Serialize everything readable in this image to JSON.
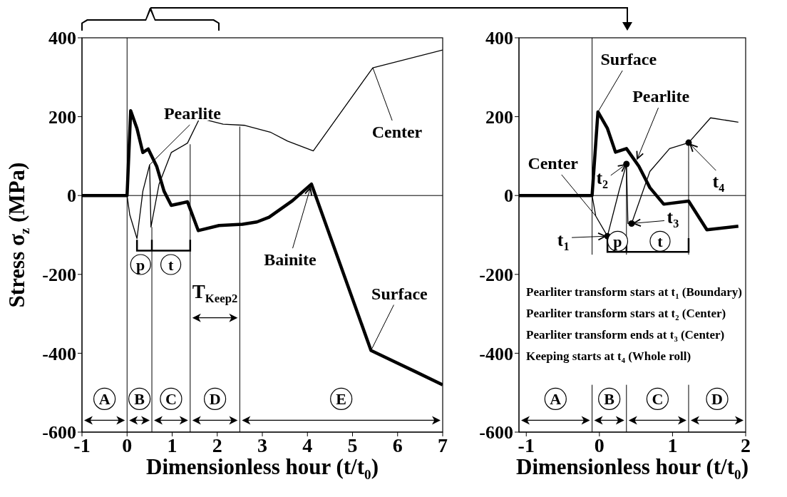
{
  "chart_data": [
    {
      "type": "line",
      "xlabel": "Dimensionless hour (t/t$_{0}$)",
      "ylabel": "Stress σ$_{z}$ (MPa)",
      "xlim": [
        -1,
        7
      ],
      "ylim": [
        -600,
        400
      ],
      "xticks": [
        -1,
        0,
        1,
        2,
        3,
        4,
        5,
        6,
        7
      ],
      "yticks": [
        -600,
        -400,
        -200,
        0,
        200,
        400
      ],
      "series": [
        {
          "name": "Surface",
          "color": "#000000",
          "x": [
            -1,
            0,
            0.08,
            0.22,
            0.35,
            0.47,
            0.66,
            0.82,
            0.98,
            1.34,
            1.58,
            2.04,
            2.56,
            2.88,
            3.15,
            3.67,
            4.09,
            5.41,
            6.4,
            7
          ],
          "values": [
            0,
            0,
            215,
            170,
            109,
            118,
            73,
            11,
            -25,
            -16,
            -89,
            -76,
            -73,
            -67,
            -55,
            -13,
            29,
            -393,
            -447,
            -480
          ]
        },
        {
          "name": "Center",
          "color": "#000000",
          "x": [
            -1,
            0,
            0.06,
            0.22,
            0.35,
            0.5,
            0.53,
            0.71,
            0.98,
            1.34,
            1.61,
            2.13,
            2.61,
            3.19,
            3.56,
            4.13,
            5.45,
            7
          ],
          "values": [
            0,
            0,
            -49,
            -109,
            11,
            78,
            -80,
            29,
            109,
            133,
            196,
            181,
            178,
            160,
            138,
            113,
            324,
            369
          ]
        }
      ],
      "ref_lines": [
        {
          "axis": "y",
          "value": 0
        },
        {
          "axis": "x",
          "value": 0
        },
        {
          "axis": "x",
          "value": 0.55
        },
        {
          "axis": "x",
          "value": 1.4
        },
        {
          "axis": "x",
          "value": 2.5
        }
      ],
      "annotations": [
        {
          "text": "Pearlite",
          "x": 0.5,
          "y": 78
        },
        {
          "text": "Bainite",
          "x": 4.09,
          "y": 29
        },
        {
          "text": "p",
          "x": 0.3,
          "y": -175
        },
        {
          "text": "t",
          "x": 0.97,
          "y": -175
        },
        "T$_{Keep2}$",
        "A",
        "B",
        "C",
        "D",
        "E"
      ]
    },
    {
      "type": "line",
      "xlabel": "Dimensionless hour (t/t$_{0}$)",
      "xlim": [
        -1.1,
        2
      ],
      "ylim": [
        -600,
        400
      ],
      "xticks": [
        -1,
        0,
        1,
        2
      ],
      "yticks": [
        -600,
        -400,
        -200,
        0,
        200,
        400
      ],
      "series": [
        {
          "name": "Surface",
          "color": "#000000",
          "x": [
            -1.1,
            -0.1,
            -0.02,
            0.11,
            0.22,
            0.37,
            0.54,
            0.69,
            0.88,
            1.22,
            1.47,
            1.9
          ],
          "values": [
            0,
            0,
            212,
            170,
            110,
            119,
            74,
            20,
            -22,
            -14,
            -87,
            -78
          ]
        },
        {
          "name": "Center",
          "color": "#000000",
          "x": [
            -1.1,
            -0.1,
            -0.05,
            0.11,
            0.27,
            0.37,
            0.39,
            0.44,
            0.69,
            0.96,
            1.22,
            1.52,
            1.9
          ],
          "values": [
            0,
            0,
            -52,
            -103,
            13,
            80,
            -71,
            -71,
            61,
            119,
            134,
            197,
            186
          ]
        },
        {
          "type": "scatter",
          "marker": "circle",
          "color": "#000000",
          "x": [
            0.11,
            0.37,
            0.44,
            1.22
          ],
          "values": [
            -103,
            80,
            -71,
            134
          ]
        }
      ],
      "ref_lines": [
        {
          "axis": "y",
          "value": 0
        },
        {
          "axis": "x",
          "value": -0.1
        },
        {
          "axis": "x",
          "value": 0.37
        },
        {
          "axis": "x",
          "value": 1.22
        }
      ],
      "annotations": [
        {
          "text": "Pearlite",
          "x": 0.5,
          "y": 85
        },
        {
          "text": "t$_{1}$",
          "x": 0.11,
          "y": -103
        },
        {
          "text": "t$_{2}$",
          "x": 0.37,
          "y": 80
        },
        {
          "text": "t$_{3}$",
          "x": 0.44,
          "y": -71
        },
        {
          "text": "t$_{4}$",
          "x": 1.22,
          "y": 134
        },
        {
          "text": "p",
          "x": 0.25,
          "y": -116
        },
        {
          "text": "t",
          "x": 0.83,
          "y": -116
        },
        "Pearliter transform stars at t$_{1}$ (Boundary)",
        "Pearliter transform stars at t$_{2}$ (Center)",
        "Pearliter transform ends at t$_{3}$ (Center)",
        "Keeping starts at t$_{4}$ (Whole roll)",
        "A",
        "B",
        "C",
        "D"
      ]
    }
  ]
}
